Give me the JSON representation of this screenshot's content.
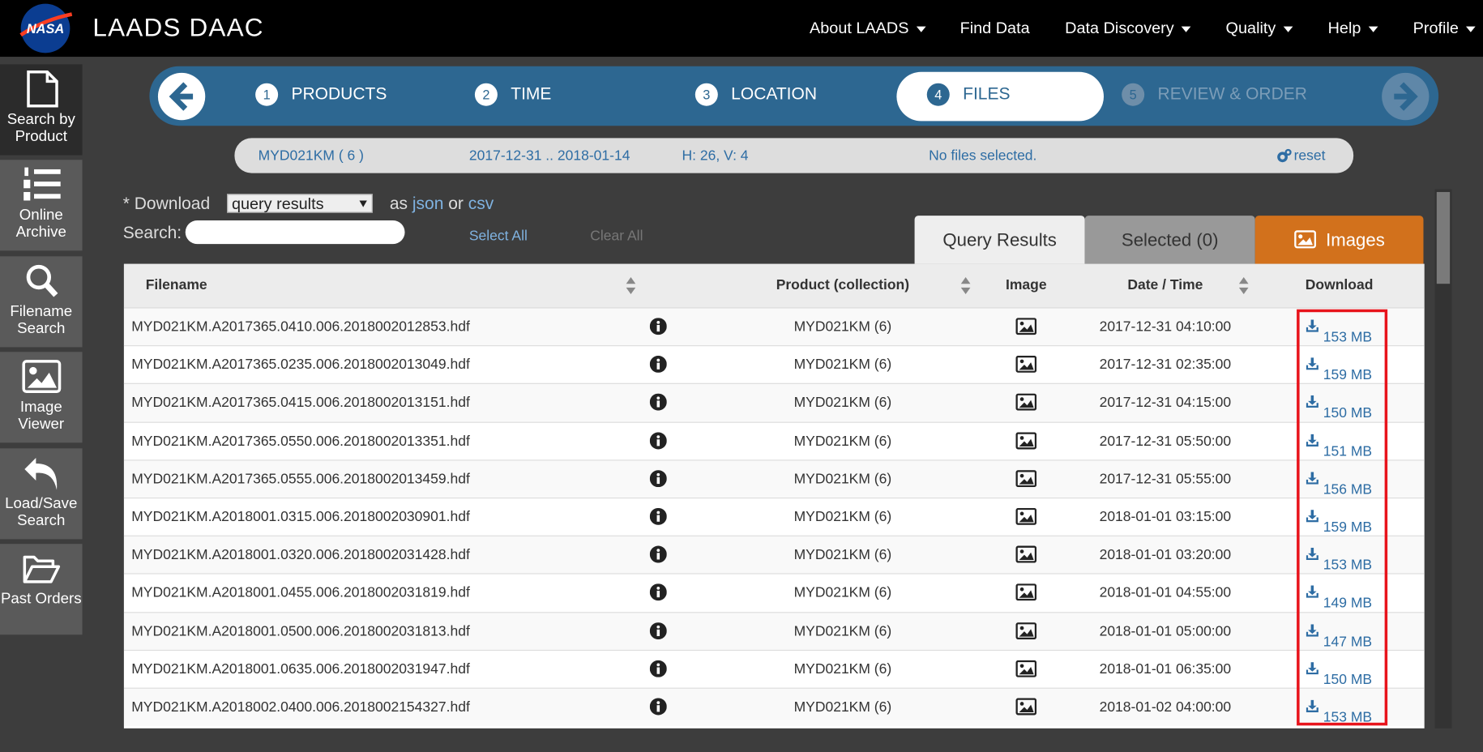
{
  "nav": {
    "logo": "NASA",
    "brand": "LAADS DAAC",
    "items": [
      {
        "label": "About LAADS",
        "dropdown": true
      },
      {
        "label": "Find Data",
        "dropdown": false
      },
      {
        "label": "Data Discovery",
        "dropdown": true
      },
      {
        "label": "Quality",
        "dropdown": true
      },
      {
        "label": "Help",
        "dropdown": true
      },
      {
        "label": "Profile",
        "dropdown": true
      }
    ]
  },
  "sidebar": [
    "Search by Product",
    "Online Archive",
    "Filename Search",
    "Image Viewer",
    "Load/Save Search",
    "Past Orders"
  ],
  "steps": [
    {
      "number": 1,
      "label": "PRODUCTS"
    },
    {
      "number": 2,
      "label": "TIME"
    },
    {
      "number": 3,
      "label": "LOCATION"
    },
    {
      "number": 4,
      "label": "FILES"
    },
    {
      "number": 5,
      "label": "REVIEW & ORDER"
    }
  ],
  "summary": {
    "product": "MYD021KM ( 6 )",
    "dates": "2017-12-31 .. 2018-01-14",
    "tiles": "H: 26, V: 4",
    "selection": "No files selected.",
    "reset": "reset"
  },
  "controls": {
    "download_label": "* Download",
    "select": "query results",
    "as": "as",
    "json": "json",
    "or": "or",
    "csv": "csv",
    "search_label": "Search:",
    "select_all": "Select All",
    "clear_all": "Clear All"
  },
  "tabs": [
    "Query Results",
    "Selected (0)",
    "Images"
  ],
  "table": {
    "headers": [
      "Filename",
      "Product (collection)",
      "Image",
      "Date / Time",
      "Download"
    ],
    "rows": [
      [
        "MYD021KM.A2017365.0410.006.2018002012853.hdf",
        "MYD021KM (6)",
        "2017-12-31 04:10:00",
        "153 MB"
      ],
      [
        "MYD021KM.A2017365.0235.006.2018002013049.hdf",
        "MYD021KM (6)",
        "2017-12-31 02:35:00",
        "159 MB"
      ],
      [
        "MYD021KM.A2017365.0415.006.2018002013151.hdf",
        "MYD021KM (6)",
        "2017-12-31 04:15:00",
        "150 MB"
      ],
      [
        "MYD021KM.A2017365.0550.006.2018002013351.hdf",
        "MYD021KM (6)",
        "2017-12-31 05:50:00",
        "151 MB"
      ],
      [
        "MYD021KM.A2017365.0555.006.2018002013459.hdf",
        "MYD021KM (6)",
        "2017-12-31 05:55:00",
        "156 MB"
      ],
      [
        "MYD021KM.A2018001.0315.006.2018002030901.hdf",
        "MYD021KM (6)",
        "2018-01-01 03:15:00",
        "159 MB"
      ],
      [
        "MYD021KM.A2018001.0320.006.2018002031428.hdf",
        "MYD021KM (6)",
        "2018-01-01 03:20:00",
        "153 MB"
      ],
      [
        "MYD021KM.A2018001.0455.006.2018002031819.hdf",
        "MYD021KM (6)",
        "2018-01-01 04:55:00",
        "149 MB"
      ],
      [
        "MYD021KM.A2018001.0500.006.2018002031813.hdf",
        "MYD021KM (6)",
        "2018-01-01 05:00:00",
        "147 MB"
      ],
      [
        "MYD021KM.A2018001.0635.006.2018002031947.hdf",
        "MYD021KM (6)",
        "2018-01-01 06:35:00",
        "150 MB"
      ],
      [
        "MYD021KM.A2018002.0400.006.2018002154327.hdf",
        "MYD021KM (6)",
        "2018-01-02 04:00:00",
        "153 MB"
      ]
    ]
  }
}
